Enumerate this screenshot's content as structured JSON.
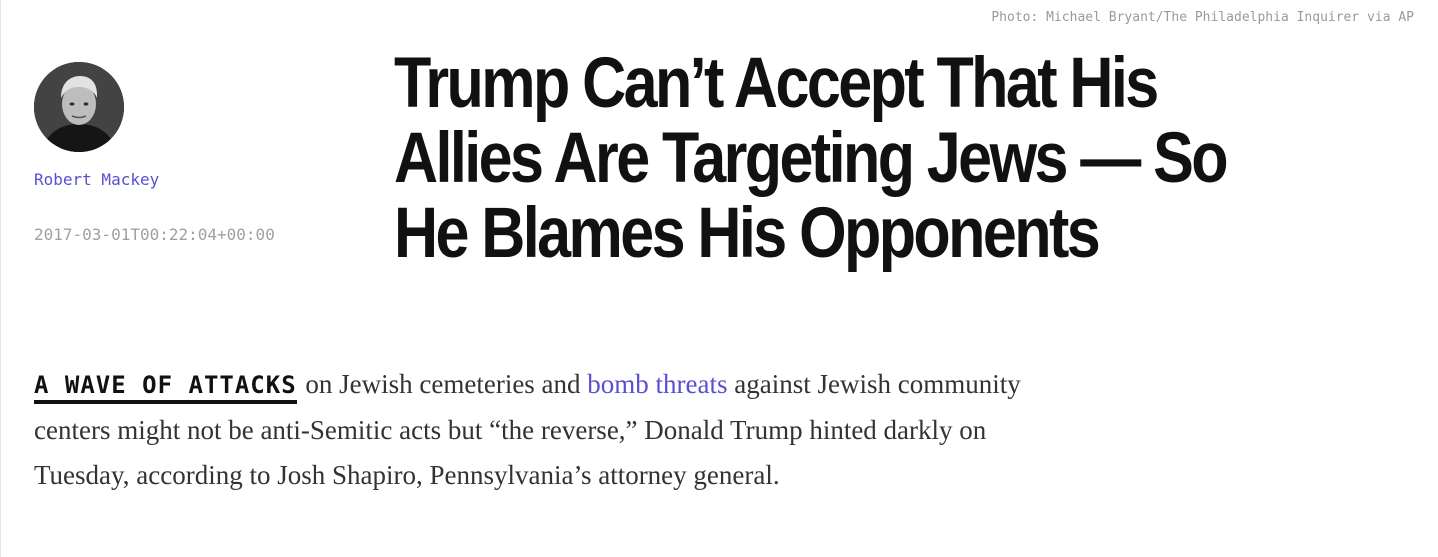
{
  "photo_credit": "Photo: Michael Bryant/The Philadelphia Inquirer via AP",
  "byline": {
    "author": "Robert Mackey",
    "timestamp": "2017-03-01T00:22:04+00:00",
    "avatar_icon": "author-portrait"
  },
  "headline": {
    "text": "Trump Can’t Accept That His Allies Are Targeting Jews — So He Blames His Opponents"
  },
  "body": {
    "lede": "A WAVE OF ATTACKS",
    "text_1": " on Jewish cemeteries and ",
    "link_text": "bomb threats",
    "text_2": " against Jewish community centers might not be anti-Semitic acts but “the reverse,” Donald Trump hinted darkly on Tuesday, according to Josh Shapiro, Pennsylvania’s attorney general."
  },
  "colors": {
    "link": "#5a4fcf",
    "headline": "#111111",
    "meta": "#a0a0a0"
  }
}
